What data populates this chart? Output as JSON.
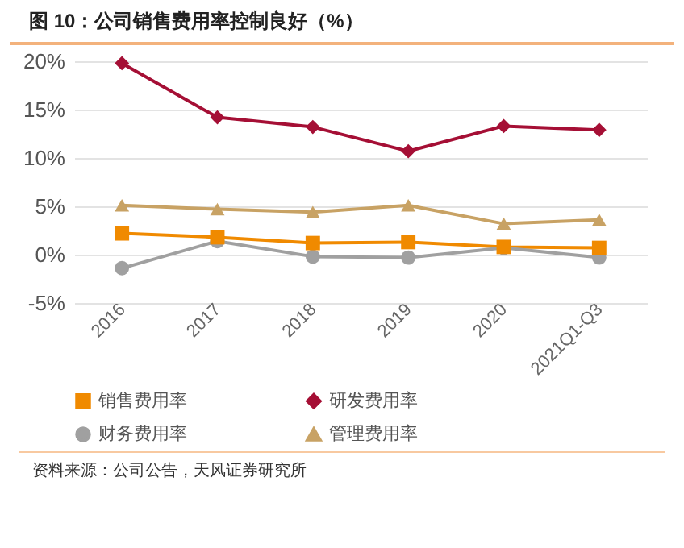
{
  "chart_data": {
    "type": "line",
    "title": "图 10：公司销售费用率控制良好（%）",
    "categories": [
      "2016",
      "2017",
      "2018",
      "2019",
      "2020",
      "2021Q1-Q3"
    ],
    "series": [
      {
        "name": "销售费用率",
        "color": "#f08a00",
        "marker": "square",
        "values": [
          2.2,
          1.8,
          1.2,
          1.3,
          0.8,
          0.7
        ]
      },
      {
        "name": "研发费用率",
        "color": "#a50f35",
        "marker": "diamond",
        "values": [
          19.8,
          14.2,
          13.2,
          10.7,
          13.3,
          12.9
        ]
      },
      {
        "name": "财务费用率",
        "color": "#a0a0a0",
        "marker": "circle",
        "values": [
          -1.4,
          1.4,
          -0.2,
          -0.3,
          0.7,
          -0.3
        ]
      },
      {
        "name": "管理费用率",
        "color": "#c8a264",
        "marker": "triangle",
        "values": [
          5.1,
          4.7,
          4.4,
          5.1,
          3.2,
          3.6
        ]
      }
    ],
    "ylim": [
      -5,
      20
    ],
    "yticks": [
      {
        "value": -5,
        "label": "-5%"
      },
      {
        "value": 0,
        "label": "0%"
      },
      {
        "value": 5,
        "label": "5%"
      },
      {
        "value": 10,
        "label": "10%"
      },
      {
        "value": 15,
        "label": "15%"
      },
      {
        "value": 20,
        "label": "20%"
      }
    ],
    "grid": "y",
    "legend": "bottom",
    "line_style": "solid",
    "annotations": [
      "资料来源：公司公告，天风证券研究所"
    ]
  }
}
